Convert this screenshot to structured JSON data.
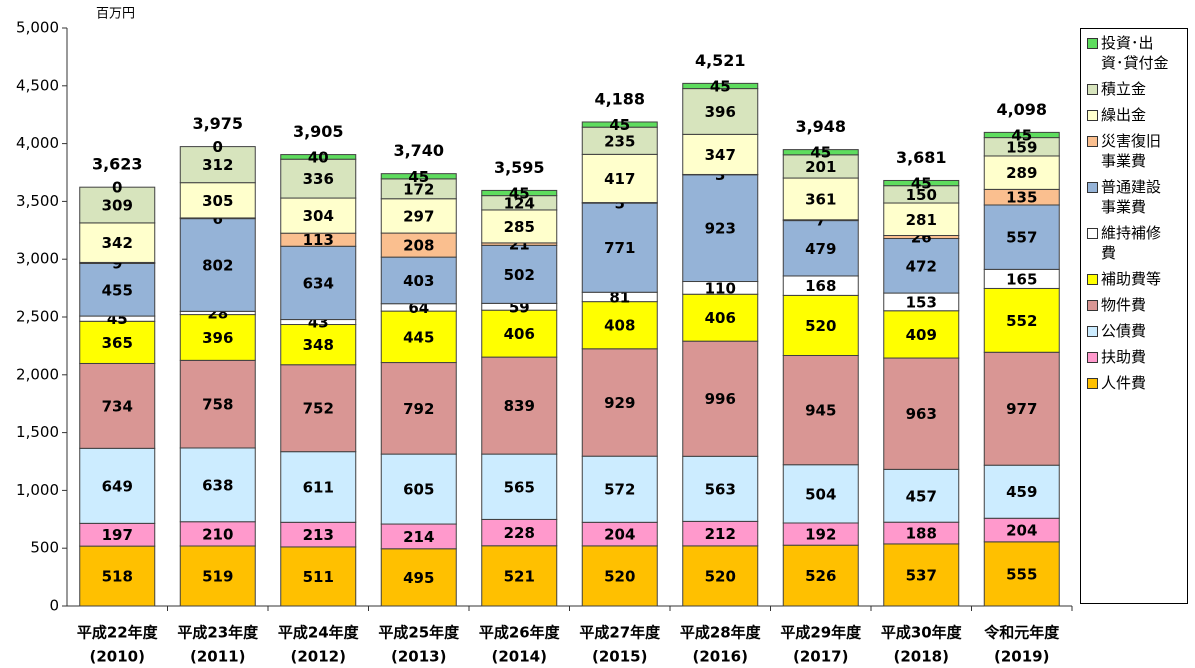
{
  "chart_data": {
    "type": "stacked-bar",
    "y_unit": "百万円",
    "categories": [
      [
        "平成22年度",
        "(2010)"
      ],
      [
        "平成23年度",
        "(2011)"
      ],
      [
        "平成24年度",
        "(2012)"
      ],
      [
        "平成25年度",
        "(2013)"
      ],
      [
        "平成26年度",
        "(2014)"
      ],
      [
        "平成27年度",
        "(2015)"
      ],
      [
        "平成28年度",
        "(2016)"
      ],
      [
        "平成29年度",
        "(2017)"
      ],
      [
        "平成30年度",
        "(2018)"
      ],
      [
        "令和元年度",
        "(2019)"
      ]
    ],
    "series": [
      {
        "name": "人件費",
        "color": "#FFC000",
        "values": [
          518,
          519,
          511,
          495,
          521,
          520,
          520,
          526,
          537,
          555
        ]
      },
      {
        "name": "扶助費",
        "color": "#FF99CC",
        "values": [
          197,
          210,
          213,
          214,
          228,
          204,
          212,
          192,
          188,
          204
        ]
      },
      {
        "name": "公債費",
        "color": "#CCECFF",
        "values": [
          649,
          638,
          611,
          605,
          565,
          572,
          563,
          504,
          457,
          459
        ]
      },
      {
        "name": "物件費",
        "color": "#D99694",
        "values": [
          734,
          758,
          752,
          792,
          839,
          929,
          996,
          945,
          963,
          977
        ]
      },
      {
        "name": "補助費等",
        "color": "#FFFF00",
        "values": [
          365,
          396,
          348,
          445,
          406,
          408,
          406,
          520,
          409,
          552
        ]
      },
      {
        "name": "維持補修費",
        "color": "#FFFFFF",
        "values": [
          45,
          28,
          43,
          64,
          59,
          81,
          110,
          168,
          153,
          165
        ]
      },
      {
        "name": "普通建設事業費",
        "color": "#95B3D7",
        "values": [
          455,
          802,
          634,
          403,
          502,
          771,
          923,
          479,
          472,
          557
        ]
      },
      {
        "name": "災害復旧事業費",
        "color": "#FABF8F",
        "values": [
          9,
          6,
          113,
          208,
          21,
          5,
          3,
          7,
          26,
          135
        ]
      },
      {
        "name": "繰出金",
        "color": "#FFFFCC",
        "values": [
          342,
          305,
          304,
          297,
          285,
          417,
          347,
          361,
          281,
          289
        ]
      },
      {
        "name": "積立金",
        "color": "#D7E4BD",
        "values": [
          309,
          312,
          336,
          172,
          124,
          235,
          396,
          201,
          150,
          159
        ]
      },
      {
        "name": "投資･出資･貸付金",
        "color": "#5EDC5E",
        "values": [
          0,
          0,
          40,
          45,
          45,
          45,
          45,
          45,
          45,
          45
        ]
      }
    ],
    "totals": [
      3623,
      3975,
      3905,
      3740,
      3595,
      4188,
      4521,
      3948,
      3681,
      4098
    ],
    "total_labels": [
      "3,623",
      "3,975",
      "3,905",
      "3,740",
      "3,595",
      "4,188",
      "4,521",
      "3,948",
      "3,681",
      "4,098"
    ],
    "ylim": [
      0,
      5000
    ],
    "yticks": [
      0,
      500,
      {
        "value": 1000,
        "label": "1,000"
      },
      {
        "value": 1500,
        "label": "1,500"
      },
      {
        "value": 2000,
        "label": "2,000"
      },
      {
        "value": 2500,
        "label": "2,500"
      },
      {
        "value": 3000,
        "label": "3,000"
      },
      {
        "value": 3500,
        "label": "3,500"
      },
      {
        "value": 4000,
        "label": "4,000"
      },
      {
        "value": 4500,
        "label": "4,500"
      },
      {
        "value": 5000,
        "label": "5,000"
      }
    ],
    "grid": false
  }
}
